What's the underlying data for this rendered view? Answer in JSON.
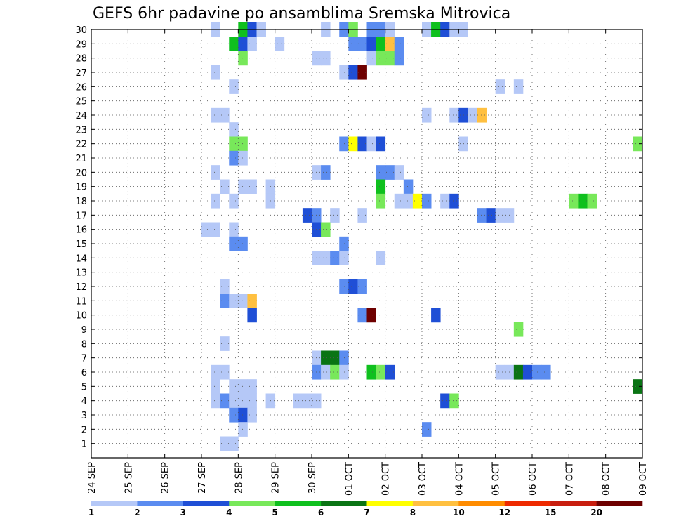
{
  "chart_data": {
    "type": "heatmap",
    "title": "GEFS 6hr padavine po ansamblima Sremska Mitrovica",
    "x_dates": [
      "24 SEP",
      "25 SEP",
      "26 SEP",
      "27 SEP",
      "28 SEP",
      "29 SEP",
      "30 SEP",
      "01 OCT",
      "02 OCT",
      "03 OCT",
      "04 OCT",
      "05 OCT",
      "06 OCT",
      "07 OCT",
      "08 OCT",
      "09 OCT"
    ],
    "xlim": [
      0,
      60
    ],
    "y_ticks": [
      1,
      2,
      3,
      4,
      5,
      6,
      7,
      8,
      9,
      10,
      11,
      12,
      13,
      14,
      15,
      16,
      17,
      18,
      19,
      20,
      21,
      22,
      23,
      24,
      25,
      26,
      27,
      28,
      29,
      30
    ],
    "ylim": [
      0,
      30
    ],
    "grid": true,
    "colorbar": {
      "levels": [
        "1",
        "2",
        "3",
        "4",
        "5",
        "6",
        "7",
        "8",
        "10",
        "12",
        "15",
        "20"
      ],
      "colors": [
        "#b5c8f7",
        "#5b8cf0",
        "#1f4fd6",
        "#78e85a",
        "#0fc01e",
        "#0a7414",
        "#ffff00",
        "#ffc040",
        "#ff8c00",
        "#ee2a00",
        "#c81e0f",
        "#6e0000"
      ]
    },
    "cells": [
      [
        13,
        30,
        0
      ],
      [
        16,
        30,
        4
      ],
      [
        17,
        30,
        2
      ],
      [
        18,
        30,
        0
      ],
      [
        25,
        30,
        0
      ],
      [
        27,
        30,
        1
      ],
      [
        28,
        30,
        3
      ],
      [
        30,
        30,
        1
      ],
      [
        31,
        30,
        1
      ],
      [
        32,
        30,
        0
      ],
      [
        36,
        30,
        0
      ],
      [
        37,
        30,
        4
      ],
      [
        38,
        30,
        2
      ],
      [
        39,
        30,
        0
      ],
      [
        40,
        30,
        0
      ],
      [
        15,
        29,
        4
      ],
      [
        16,
        29,
        2
      ],
      [
        17,
        29,
        0
      ],
      [
        20,
        29,
        0
      ],
      [
        28,
        29,
        1
      ],
      [
        29,
        29,
        1
      ],
      [
        30,
        29,
        2
      ],
      [
        31,
        29,
        4
      ],
      [
        32,
        29,
        7
      ],
      [
        33,
        29,
        1
      ],
      [
        16,
        28,
        3
      ],
      [
        24,
        28,
        0
      ],
      [
        25,
        28,
        0
      ],
      [
        30,
        28,
        0
      ],
      [
        31,
        28,
        3
      ],
      [
        32,
        28,
        3
      ],
      [
        33,
        28,
        1
      ],
      [
        13,
        27,
        0
      ],
      [
        27,
        27,
        0
      ],
      [
        28,
        27,
        2
      ],
      [
        29,
        27,
        11
      ],
      [
        15,
        26,
        0
      ],
      [
        44,
        26,
        0
      ],
      [
        46,
        26,
        0
      ],
      [
        13,
        24,
        0
      ],
      [
        14,
        24,
        0
      ],
      [
        36,
        24,
        0
      ],
      [
        39,
        24,
        0
      ],
      [
        40,
        24,
        2
      ],
      [
        41,
        24,
        0
      ],
      [
        42,
        24,
        7
      ],
      [
        15,
        23,
        0
      ],
      [
        15,
        22,
        3
      ],
      [
        16,
        22,
        3
      ],
      [
        27,
        22,
        1
      ],
      [
        28,
        22,
        6
      ],
      [
        29,
        22,
        2
      ],
      [
        30,
        22,
        0
      ],
      [
        31,
        22,
        2
      ],
      [
        40,
        22,
        0
      ],
      [
        59,
        22,
        3
      ],
      [
        15,
        21,
        1
      ],
      [
        16,
        21,
        0
      ],
      [
        13,
        20,
        0
      ],
      [
        24,
        20,
        0
      ],
      [
        25,
        20,
        1
      ],
      [
        31,
        20,
        1
      ],
      [
        32,
        20,
        1
      ],
      [
        33,
        20,
        0
      ],
      [
        14,
        19,
        0
      ],
      [
        16,
        19,
        0
      ],
      [
        17,
        19,
        0
      ],
      [
        19,
        19,
        0
      ],
      [
        31,
        19,
        4
      ],
      [
        34,
        19,
        1
      ],
      [
        13,
        18,
        0
      ],
      [
        15,
        18,
        0
      ],
      [
        19,
        18,
        0
      ],
      [
        31,
        18,
        3
      ],
      [
        33,
        18,
        0
      ],
      [
        34,
        18,
        0
      ],
      [
        35,
        18,
        6
      ],
      [
        36,
        18,
        1
      ],
      [
        38,
        18,
        0
      ],
      [
        39,
        18,
        2
      ],
      [
        52,
        18,
        3
      ],
      [
        53,
        18,
        4
      ],
      [
        54,
        18,
        3
      ],
      [
        23,
        17,
        2
      ],
      [
        24,
        17,
        1
      ],
      [
        26,
        17,
        0
      ],
      [
        29,
        17,
        0
      ],
      [
        42,
        17,
        1
      ],
      [
        43,
        17,
        2
      ],
      [
        44,
        17,
        0
      ],
      [
        45,
        17,
        0
      ],
      [
        12,
        16,
        0
      ],
      [
        13,
        16,
        0
      ],
      [
        15,
        16,
        0
      ],
      [
        24,
        16,
        2
      ],
      [
        25,
        16,
        3
      ],
      [
        15,
        15,
        1
      ],
      [
        16,
        15,
        1
      ],
      [
        27,
        15,
        1
      ],
      [
        24,
        14,
        0
      ],
      [
        25,
        14,
        0
      ],
      [
        26,
        14,
        1
      ],
      [
        27,
        14,
        0
      ],
      [
        31,
        14,
        0
      ],
      [
        14,
        12,
        0
      ],
      [
        27,
        12,
        1
      ],
      [
        28,
        12,
        2
      ],
      [
        29,
        12,
        1
      ],
      [
        14,
        11,
        1
      ],
      [
        15,
        11,
        0
      ],
      [
        16,
        11,
        0
      ],
      [
        17,
        11,
        7
      ],
      [
        17,
        10,
        2
      ],
      [
        29,
        10,
        1
      ],
      [
        30,
        10,
        11
      ],
      [
        37,
        10,
        2
      ],
      [
        46,
        9,
        3
      ],
      [
        14,
        8,
        0
      ],
      [
        24,
        7,
        0
      ],
      [
        25,
        7,
        5
      ],
      [
        26,
        7,
        5
      ],
      [
        27,
        7,
        1
      ],
      [
        13,
        6,
        0
      ],
      [
        14,
        6,
        0
      ],
      [
        24,
        6,
        1
      ],
      [
        25,
        6,
        0
      ],
      [
        26,
        6,
        3
      ],
      [
        27,
        6,
        0
      ],
      [
        30,
        6,
        4
      ],
      [
        31,
        6,
        3
      ],
      [
        32,
        6,
        2
      ],
      [
        44,
        6,
        0
      ],
      [
        45,
        6,
        0
      ],
      [
        46,
        6,
        5
      ],
      [
        47,
        6,
        2
      ],
      [
        48,
        6,
        1
      ],
      [
        49,
        6,
        1
      ],
      [
        13,
        5,
        0
      ],
      [
        15,
        5,
        0
      ],
      [
        16,
        5,
        0
      ],
      [
        17,
        5,
        0
      ],
      [
        59,
        5,
        5
      ],
      [
        13,
        4,
        0
      ],
      [
        14,
        4,
        1
      ],
      [
        15,
        4,
        0
      ],
      [
        16,
        4,
        0
      ],
      [
        17,
        4,
        0
      ],
      [
        19,
        4,
        0
      ],
      [
        22,
        4,
        0
      ],
      [
        23,
        4,
        0
      ],
      [
        24,
        4,
        0
      ],
      [
        38,
        4,
        2
      ],
      [
        39,
        4,
        3
      ],
      [
        15,
        3,
        1
      ],
      [
        16,
        3,
        2
      ],
      [
        17,
        3,
        0
      ],
      [
        16,
        2,
        0
      ],
      [
        36,
        2,
        1
      ],
      [
        14,
        1,
        0
      ],
      [
        15,
        1,
        0
      ]
    ]
  }
}
